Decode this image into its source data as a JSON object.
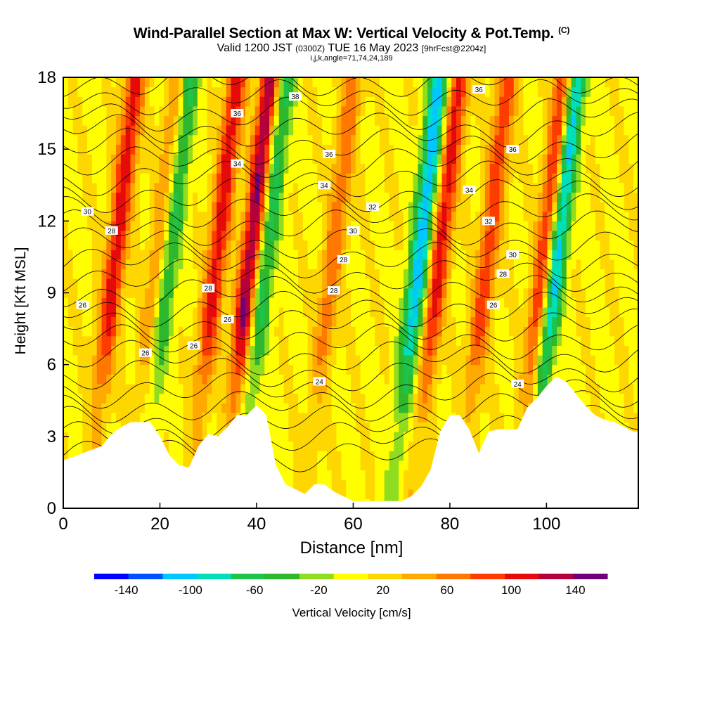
{
  "chart_data": {
    "type": "heatmap",
    "title": "Wind-Parallel Section at Max W: Vertical Velocity & Pot.Temp.",
    "title_mark": "(C)",
    "subtitle_main": "Valid 1200 JST",
    "subtitle_utc": "(0300Z)",
    "subtitle_date": "TUE 16 May 2023",
    "subtitle_fcst": "[9hrFcst@2204z]",
    "subtitle2": "i,j,k,angle=71,74,24,189",
    "xlabel": "Distance [nm]",
    "ylabel": "Height [Kft MSL]",
    "xlim": [
      0,
      119
    ],
    "ylim": [
      0,
      18
    ],
    "xticks": [
      "0",
      "20",
      "40",
      "60",
      "80",
      "100"
    ],
    "xtick_values": [
      0,
      20,
      40,
      60,
      80,
      100
    ],
    "yticks": [
      "0",
      "3",
      "6",
      "9",
      "12",
      "15",
      "18"
    ],
    "ytick_values": [
      0,
      3,
      6,
      9,
      12,
      15,
      18
    ],
    "colorbar": {
      "label": "Vertical Velocity [cm/s]",
      "tick_labels": [
        "-140",
        "-100",
        "-60",
        "-20",
        "20",
        "60",
        "100",
        "140"
      ],
      "tick_values": [
        -140,
        -100,
        -60,
        -20,
        20,
        60,
        100,
        140
      ],
      "range": [
        -160,
        160
      ],
      "colors": [
        "#0000ff",
        "#0050ff",
        "#00c8ff",
        "#00e0b8",
        "#1ec44a",
        "#2db82d",
        "#90dc1e",
        "#ffff00",
        "#ffd700",
        "#ffaa00",
        "#ff7800",
        "#ff3c00",
        "#e60a0a",
        "#b4003c",
        "#6e0078"
      ]
    },
    "contour_field": "Potential Temperature",
    "contour_labels": [
      "24",
      "26",
      "28",
      "30",
      "32",
      "34",
      "36",
      "38"
    ],
    "updraft_peaks": [
      {
        "x": 10,
        "w": 100
      },
      {
        "x": 19,
        "w": 60
      },
      {
        "x": 31,
        "w": 100
      },
      {
        "x": 38,
        "w": 140
      },
      {
        "x": 55,
        "w": 60
      },
      {
        "x": 77,
        "w": 100
      },
      {
        "x": 87,
        "w": 80
      },
      {
        "x": 99,
        "w": 120
      }
    ],
    "downdraft_peaks": [
      {
        "x": 21,
        "w": -80
      },
      {
        "x": 41,
        "w": -80
      },
      {
        "x": 73,
        "w": -120
      },
      {
        "x": 101,
        "w": -140
      }
    ],
    "terrain_kft": [
      [
        0,
        2.0
      ],
      [
        4,
        2.3
      ],
      [
        8,
        2.6
      ],
      [
        10,
        3.1
      ],
      [
        12,
        3.4
      ],
      [
        14,
        3.6
      ],
      [
        18,
        3.6
      ],
      [
        20,
        3.0
      ],
      [
        22,
        2.2
      ],
      [
        24,
        1.8
      ],
      [
        26,
        1.7
      ],
      [
        28,
        2.6
      ],
      [
        30,
        3.1
      ],
      [
        32,
        3.0
      ],
      [
        34,
        3.4
      ],
      [
        36,
        3.9
      ],
      [
        38,
        3.9
      ],
      [
        40,
        4.3
      ],
      [
        42,
        3.9
      ],
      [
        44,
        1.8
      ],
      [
        46,
        1.0
      ],
      [
        48,
        0.8
      ],
      [
        50,
        0.6
      ],
      [
        52,
        1.0
      ],
      [
        54,
        1.0
      ],
      [
        56,
        0.7
      ],
      [
        58,
        0.5
      ],
      [
        60,
        0.3
      ],
      [
        66,
        0.3
      ],
      [
        70,
        0.3
      ],
      [
        72,
        0.5
      ],
      [
        74,
        0.9
      ],
      [
        76,
        1.6
      ],
      [
        78,
        3.2
      ],
      [
        80,
        3.9
      ],
      [
        82,
        3.9
      ],
      [
        84,
        3.3
      ],
      [
        86,
        2.3
      ],
      [
        88,
        3.2
      ],
      [
        90,
        3.3
      ],
      [
        94,
        3.3
      ],
      [
        96,
        4.2
      ],
      [
        98,
        4.6
      ],
      [
        100,
        5.1
      ],
      [
        102,
        5.5
      ],
      [
        104,
        5.3
      ],
      [
        106,
        4.8
      ],
      [
        108,
        4.3
      ],
      [
        110,
        3.9
      ],
      [
        112,
        3.7
      ],
      [
        114,
        3.6
      ],
      [
        116,
        3.4
      ],
      [
        118,
        3.2
      ],
      [
        119,
        3.2
      ]
    ]
  }
}
